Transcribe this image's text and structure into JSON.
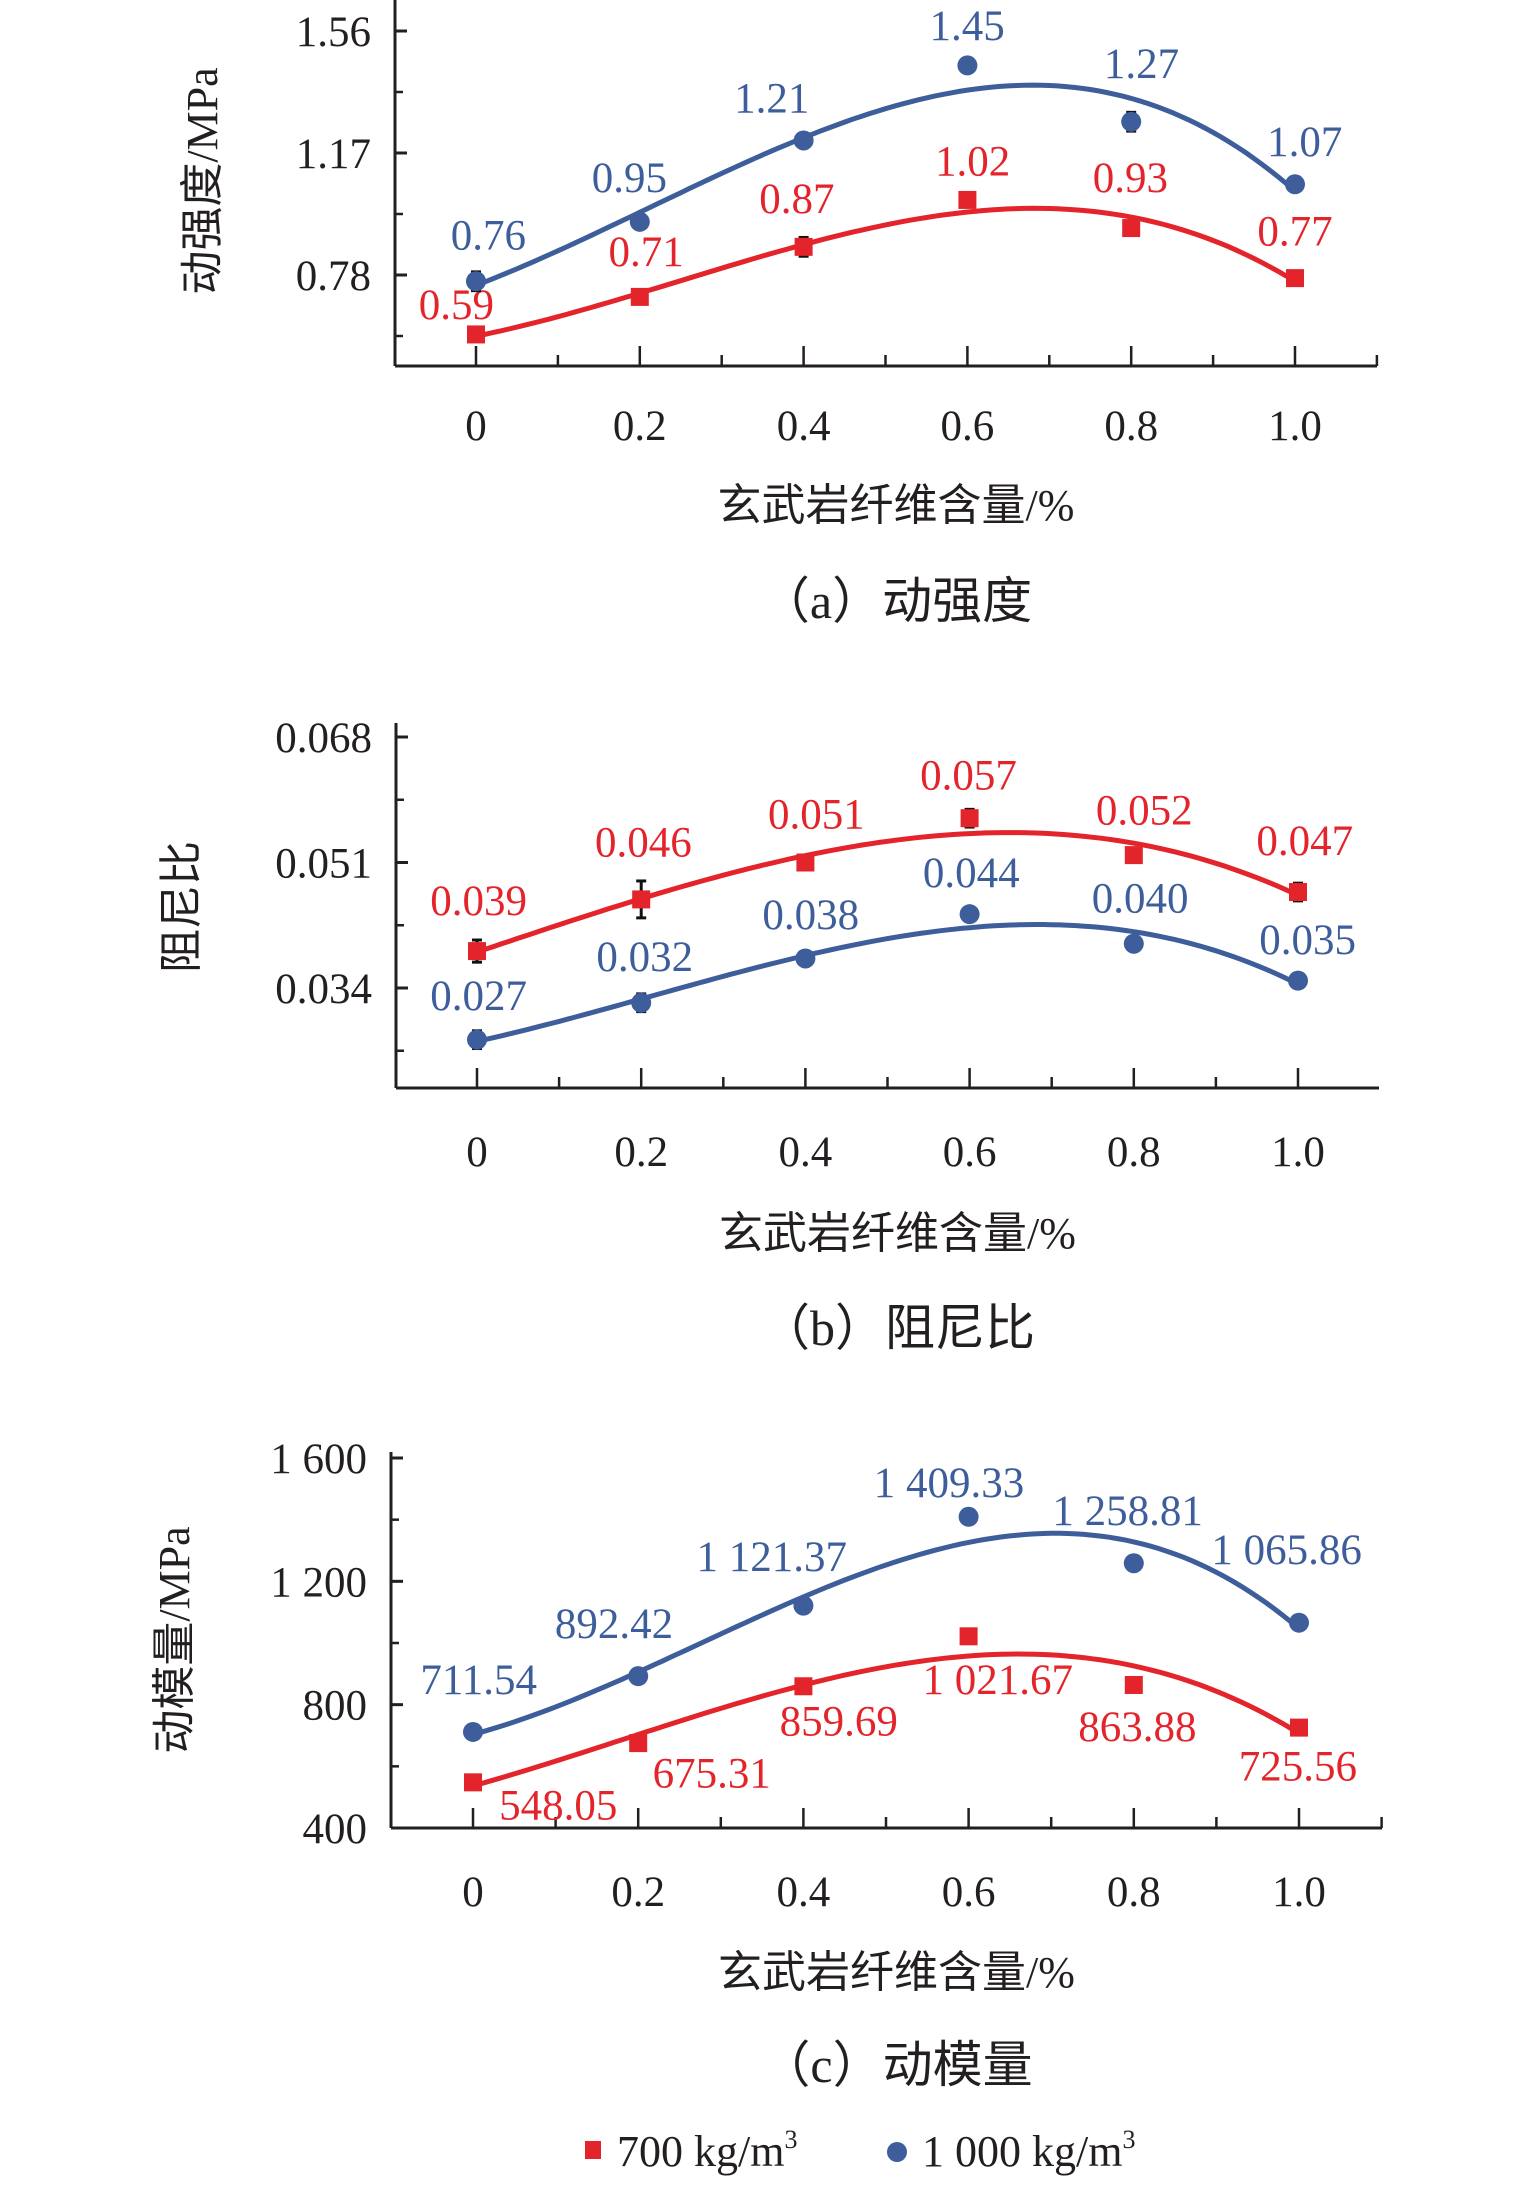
{
  "colors": {
    "series700": "#e3242b",
    "series1000": "#3d5e9b",
    "axis": "#231f20"
  },
  "legend": {
    "items": [
      {
        "label": "700 kg/m",
        "sup": "3",
        "marker": "square",
        "color": "#e3242b"
      },
      {
        "label": "1 000 kg/m",
        "sup": "3",
        "marker": "circle",
        "color": "#3d5e9b"
      }
    ],
    "placement": "bottom-center"
  },
  "chart_data": [
    {
      "type": "scatter",
      "caption": "（a）动强度",
      "xlabel": "玄武岩纤维含量/%",
      "ylabel": "动强度/MPa",
      "x": [
        0,
        0.2,
        0.4,
        0.6,
        0.8,
        1.0
      ],
      "x_tick_labels": [
        "0",
        "0.2",
        "0.4",
        "0.6",
        "0.8",
        "1.0"
      ],
      "y_ticks": [
        0.78,
        1.17,
        1.56
      ],
      "y_tick_labels": [
        "0.78",
        "1.17",
        "1.56"
      ],
      "ylim": [
        0.5,
        1.65
      ],
      "xlim": [
        -0.1,
        1.1
      ],
      "series": [
        {
          "name": "700 kg/m3",
          "values": [
            0.59,
            0.71,
            0.87,
            1.02,
            0.93,
            0.77
          ],
          "labels": [
            "0.59",
            "0.71",
            "0.87",
            "1.02",
            "0.93",
            "0.77"
          ],
          "error": [
            0.01,
            0.02,
            0.03,
            0.01,
            0.02,
            0.01
          ],
          "fit": "polynomial"
        },
        {
          "name": "1 000 kg/m3",
          "values": [
            0.76,
            0.95,
            1.21,
            1.45,
            1.27,
            1.07
          ],
          "labels": [
            "0.76",
            "0.95",
            "1.21",
            "1.45",
            "1.27",
            "1.07"
          ],
          "error": [
            0.03,
            0.01,
            0.02,
            0.02,
            0.03,
            0.01
          ],
          "fit": "polynomial"
        }
      ]
    },
    {
      "type": "scatter",
      "caption": "（b）阻尼比",
      "xlabel": "玄武岩纤维含量/%",
      "ylabel": "阻尼比",
      "x": [
        0,
        0.2,
        0.4,
        0.6,
        0.8,
        1.0
      ],
      "x_tick_labels": [
        "0",
        "0.2",
        "0.4",
        "0.6",
        "0.8",
        "1.0"
      ],
      "y_ticks": [
        0.034,
        0.051,
        0.068
      ],
      "y_tick_labels": [
        "0.034",
        "0.051",
        "0.068"
      ],
      "ylim": [
        0.0205,
        0.0706
      ],
      "xlim": [
        -0.1,
        1.1
      ],
      "series": [
        {
          "name": "700 kg/m3",
          "values": [
            0.039,
            0.046,
            0.051,
            0.057,
            0.052,
            0.047
          ],
          "labels": [
            "0.039",
            "0.046",
            "0.051",
            "0.057",
            "0.052",
            "0.047"
          ],
          "error": [
            0.0015,
            0.0025,
            0.001,
            0.0012,
            0.0006,
            0.0012
          ],
          "fit": "polynomial"
        },
        {
          "name": "1 000 kg/m3",
          "values": [
            0.027,
            0.032,
            0.038,
            0.044,
            0.04,
            0.035
          ],
          "labels": [
            "0.027",
            "0.032",
            "0.038",
            "0.044",
            "0.040",
            "0.035"
          ],
          "error": [
            0.0012,
            0.0012,
            0.0006,
            0.0008,
            0.0008,
            0.0006
          ],
          "fit": "polynomial"
        }
      ]
    },
    {
      "type": "scatter",
      "caption": "（c）动模量",
      "xlabel": "玄武岩纤维含量/%",
      "ylabel": "动模量/MPa",
      "x": [
        0,
        0.2,
        0.4,
        0.6,
        0.8,
        1.0
      ],
      "x_tick_labels": [
        "0",
        "0.2",
        "0.4",
        "0.6",
        "0.8",
        "1.0"
      ],
      "y_ticks": [
        400,
        800,
        1200,
        1600
      ],
      "y_tick_labels": [
        "400",
        "800",
        "1 200",
        "1 600"
      ],
      "ylim": [
        400,
        1600
      ],
      "xlim": [
        -0.1,
        1.1
      ],
      "series": [
        {
          "name": "700 kg/m3",
          "values": [
            548.05,
            675.31,
            859.69,
            1021.67,
            863.88,
            725.56
          ],
          "labels": [
            "548.05",
            "675.31",
            "859.69",
            "1 021.67",
            "863.88",
            "725.56"
          ],
          "error": [
            12,
            12,
            12,
            15,
            10,
            10
          ],
          "fit": "polynomial"
        },
        {
          "name": "1 000 kg/m3",
          "values": [
            711.54,
            892.42,
            1121.37,
            1409.33,
            1258.81,
            1065.86
          ],
          "labels": [
            "711.54",
            "892.42",
            "1 121.37",
            "1 409.33",
            "1 258.81",
            "1 065.86"
          ],
          "error": [
            10,
            10,
            10,
            12,
            12,
            10
          ],
          "fit": "polynomial"
        }
      ]
    }
  ]
}
